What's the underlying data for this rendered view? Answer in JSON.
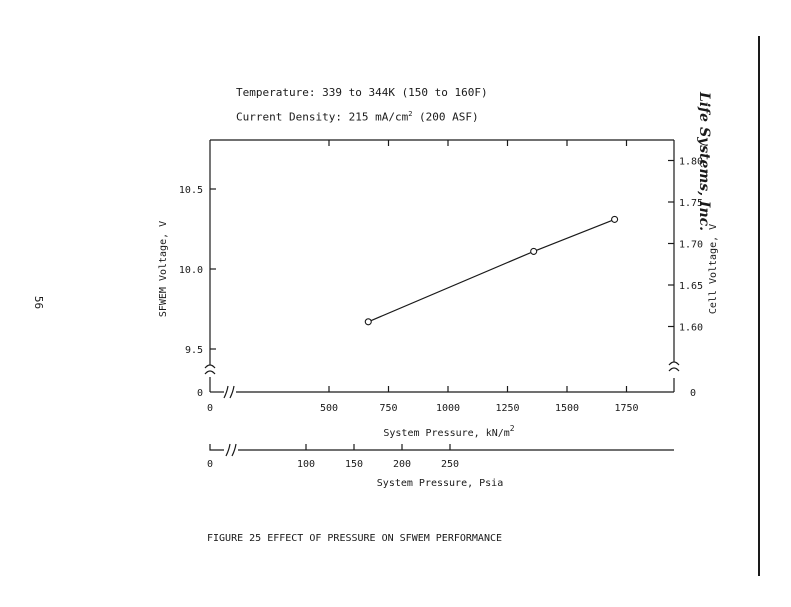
{
  "page_number": "56",
  "company": "Life Systems, Inc.",
  "header": {
    "temperature": "Temperature:  339 to 344K (150 to 160F)",
    "current_density_prefix": "Current Density:  215 mA/cm",
    "current_density_sup": "2",
    "current_density_suffix": " (200 ASF)"
  },
  "caption": "FIGURE 25  EFFECT OF PRESSURE ON SFWEM PERFORMANCE",
  "chart_data": {
    "type": "line",
    "x": [
      665,
      1360,
      1700
    ],
    "series": [
      {
        "values": [
          9.67,
          10.11,
          10.31
        ]
      }
    ],
    "xlabel": "System Pressure, kN/m",
    "xlabel_sup": "2",
    "xlim": [
      0,
      1950
    ],
    "x_ticks": [
      500,
      750,
      1000,
      1250,
      1500,
      1750
    ],
    "x_origin_label": "0",
    "ylabel_left": "SFWEM Voltage, V",
    "ylim_left": [
      9.0,
      10.85
    ],
    "y_ticks_left": [
      9.5,
      10.0,
      10.5
    ],
    "y_origin_label_left": "0",
    "ylabel_right": "Cell Voltage, V",
    "ylim_right": [
      1.551,
      1.8213
    ],
    "y_ticks_right": [
      "1.60",
      "1.65",
      "1.70",
      "1.75",
      "1.80"
    ],
    "y_origin_label_right": "0",
    "secondary_x_axis": {
      "label": "System Pressure, Psia",
      "ticks": [
        100,
        150,
        200,
        250
      ],
      "origin_label": "0",
      "lim": [
        0,
        290
      ]
    },
    "markers": "open-circle"
  }
}
